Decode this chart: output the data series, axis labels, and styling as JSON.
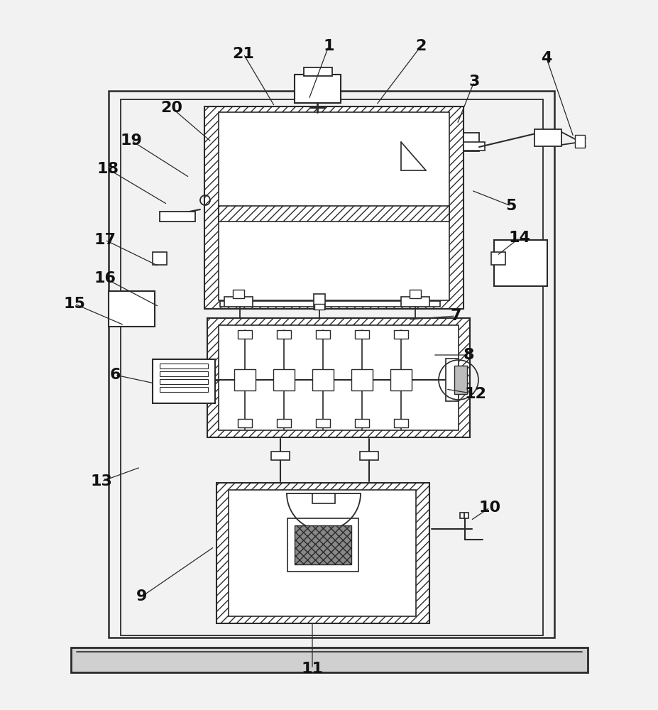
{
  "bg_color": "#f2f2f2",
  "line_color": "#2a2a2a",
  "fig_width": 9.28,
  "fig_height": 10.0,
  "dpi": 100,
  "annotations": [
    [
      "1",
      463,
      65,
      435,
      140
    ],
    [
      "2",
      593,
      65,
      530,
      148
    ],
    [
      "3",
      668,
      115,
      644,
      175
    ],
    [
      "4",
      770,
      82,
      808,
      193
    ],
    [
      "5",
      720,
      290,
      664,
      268
    ],
    [
      "6",
      162,
      528,
      218,
      540
    ],
    [
      "7",
      642,
      445,
      575,
      450
    ],
    [
      "8",
      660,
      500,
      610,
      500
    ],
    [
      "9",
      200,
      840,
      302,
      770
    ],
    [
      "10",
      690,
      715,
      663,
      733
    ],
    [
      "11",
      440,
      942,
      440,
      875
    ],
    [
      "12",
      670,
      555,
      628,
      548
    ],
    [
      "13",
      143,
      678,
      198,
      658
    ],
    [
      "14",
      732,
      335,
      700,
      360
    ],
    [
      "15",
      105,
      428,
      175,
      458
    ],
    [
      "16",
      148,
      392,
      224,
      432
    ],
    [
      "17",
      148,
      338,
      224,
      375
    ],
    [
      "18",
      152,
      238,
      236,
      288
    ],
    [
      "19",
      185,
      198,
      267,
      250
    ],
    [
      "20",
      242,
      152,
      298,
      200
    ],
    [
      "21",
      343,
      76,
      387,
      150
    ]
  ]
}
